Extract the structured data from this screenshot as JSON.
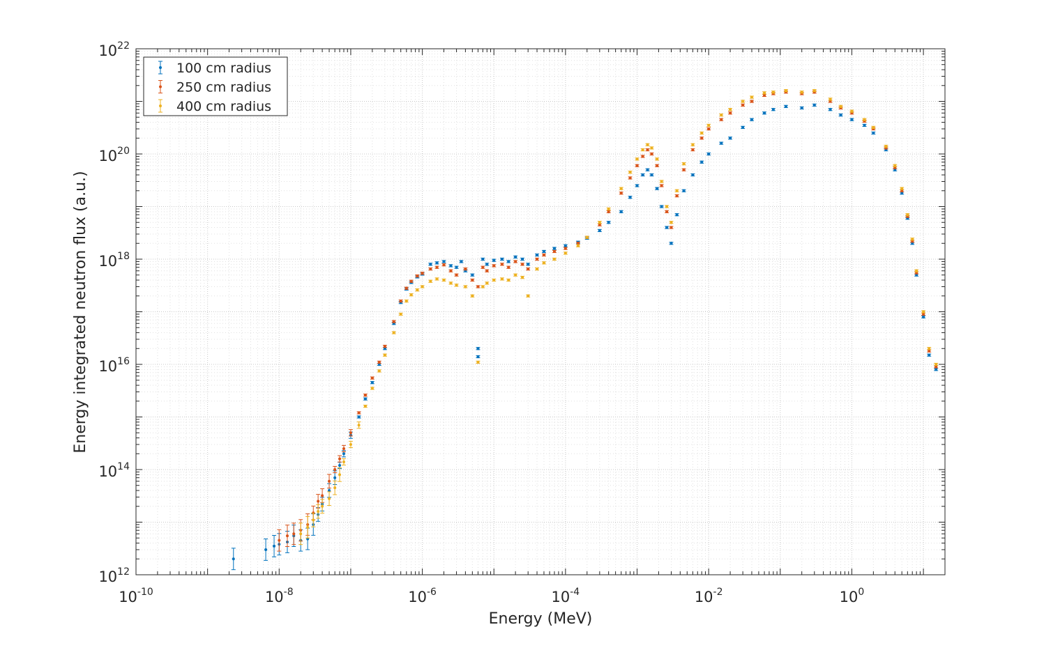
{
  "chart_data": {
    "type": "scatter",
    "title": "",
    "xlabel": "Energy (MeV)",
    "ylabel": "Energy integrated neutron flux (a.u.)",
    "xscale": "log",
    "yscale": "log",
    "xlim": [
      1e-10,
      20
    ],
    "ylim": [
      1000000000000.0,
      1e+22
    ],
    "grid": "major and minor, dotted",
    "legend_position": "top-left",
    "error_bars": true,
    "x_ticks": [
      {
        "base": "10",
        "exp": "-10",
        "value": 1e-10
      },
      {
        "base": "10",
        "exp": "-8",
        "value": 1e-08
      },
      {
        "base": "10",
        "exp": "-6",
        "value": 1e-06
      },
      {
        "base": "10",
        "exp": "-4",
        "value": 0.0001
      },
      {
        "base": "10",
        "exp": "-2",
        "value": 0.01
      },
      {
        "base": "10",
        "exp": "0",
        "value": 1
      }
    ],
    "y_ticks": [
      {
        "base": "10",
        "exp": "12",
        "value": 1000000000000.0
      },
      {
        "base": "10",
        "exp": "14",
        "value": 100000000000000.0
      },
      {
        "base": "10",
        "exp": "16",
        "value": 1e+16
      },
      {
        "base": "10",
        "exp": "18",
        "value": 1e+18
      },
      {
        "base": "10",
        "exp": "20",
        "value": 1e+20
      },
      {
        "base": "10",
        "exp": "22",
        "value": 1e+22
      }
    ],
    "series": [
      {
        "name": "100 cm radius",
        "color": "#0072BD",
        "points": [
          [
            2.3e-09,
            2000000000000.0
          ],
          [
            6.5e-09,
            3000000000000.0
          ],
          [
            8.5e-09,
            3500000000000.0
          ],
          [
            1e-08,
            3800000000000.0
          ],
          [
            1.3e-08,
            4200000000000.0
          ],
          [
            1.6e-08,
            5500000000000.0
          ],
          [
            2e-08,
            4500000000000.0
          ],
          [
            2.5e-08,
            4800000000000.0
          ],
          [
            3e-08,
            9000000000000.0
          ],
          [
            3.5e-08,
            14000000000000.0
          ],
          [
            4e-08,
            22000000000000.0
          ],
          [
            5e-08,
            40000000000000.0
          ],
          [
            6e-08,
            70000000000000.0
          ],
          [
            7e-08,
            120000000000000.0
          ],
          [
            8e-08,
            200000000000000.0
          ],
          [
            1e-07,
            450000000000000.0
          ],
          [
            1.3e-07,
            1000000000000000.0
          ],
          [
            1.6e-07,
            2200000000000000.0
          ],
          [
            2e-07,
            4500000000000000.0
          ],
          [
            2.5e-07,
            1e+16
          ],
          [
            3e-07,
            2e+16
          ],
          [
            4e-07,
            6e+16
          ],
          [
            5e-07,
            1.5e+17
          ],
          [
            6e-07,
            2.7e+17
          ],
          [
            7e-07,
            3.6e+17
          ],
          [
            8.5e-07,
            4.6e+17
          ],
          [
            1e-06,
            5.2e+17
          ],
          [
            1.3e-06,
            8e+17
          ],
          [
            1.6e-06,
            8.5e+17
          ],
          [
            2e-06,
            9e+17
          ],
          [
            2.5e-06,
            7.5e+17
          ],
          [
            3e-06,
            7e+17
          ],
          [
            3.5e-06,
            9e+17
          ],
          [
            4e-06,
            6e+17
          ],
          [
            5e-06,
            5e+17
          ],
          [
            6e-06,
            2e+16
          ],
          [
            6e-06,
            1.4e+16
          ],
          [
            7e-06,
            1e+18
          ],
          [
            8e-06,
            8e+17
          ],
          [
            1e-05,
            9.5e+17
          ],
          [
            1.3e-05,
            1e+18
          ],
          [
            1.6e-05,
            9e+17
          ],
          [
            2e-05,
            1.1e+18
          ],
          [
            2.5e-05,
            1e+18
          ],
          [
            3e-05,
            8e+17
          ],
          [
            4e-05,
            1.2e+18
          ],
          [
            5e-05,
            1.4e+18
          ],
          [
            7e-05,
            1.6e+18
          ],
          [
            0.0001,
            1.8e+18
          ],
          [
            0.00015,
            2.1e+18
          ],
          [
            0.0002,
            2.5e+18
          ],
          [
            0.0003,
            3.5e+18
          ],
          [
            0.0004,
            5e+18
          ],
          [
            0.0006,
            8e+18
          ],
          [
            0.0008,
            1.5e+19
          ],
          [
            0.001,
            2.5e+19
          ],
          [
            0.0012,
            4e+19
          ],
          [
            0.0014,
            5e+19
          ],
          [
            0.0016,
            4e+19
          ],
          [
            0.0019,
            2.2e+19
          ],
          [
            0.0022,
            1e+19
          ],
          [
            0.0026,
            4e+18
          ],
          [
            0.003,
            2e+18
          ],
          [
            0.0036,
            7e+18
          ],
          [
            0.0045,
            2e+19
          ],
          [
            0.006,
            4e+19
          ],
          [
            0.008,
            7e+19
          ],
          [
            0.01,
            1e+20
          ],
          [
            0.015,
            1.6e+20
          ],
          [
            0.02,
            2e+20
          ],
          [
            0.03,
            3.2e+20
          ],
          [
            0.04,
            4.5e+20
          ],
          [
            0.06,
            6e+20
          ],
          [
            0.08,
            7e+20
          ],
          [
            0.12,
            8e+20
          ],
          [
            0.2,
            7.5e+20
          ],
          [
            0.3,
            8.5e+20
          ],
          [
            0.5,
            7e+20
          ],
          [
            0.7,
            5.5e+20
          ],
          [
            1.0,
            4.5e+20
          ],
          [
            1.5,
            3.5e+20
          ],
          [
            2.0,
            2.5e+20
          ],
          [
            3.0,
            1.2e+20
          ],
          [
            4.0,
            5e+19
          ],
          [
            5.0,
            1.8e+19
          ],
          [
            6.0,
            6e+18
          ],
          [
            7.0,
            2e+18
          ],
          [
            8.0,
            5e+17
          ],
          [
            10.0,
            8e+16
          ],
          [
            12.0,
            1.5e+16
          ],
          [
            15.0,
            8000000000000000.0
          ]
        ]
      },
      {
        "name": "250 cm radius",
        "color": "#D95319",
        "points": [
          [
            1e-08,
            4500000000000.0
          ],
          [
            1.3e-08,
            5500000000000.0
          ],
          [
            1.6e-08,
            6000000000000.0
          ],
          [
            2e-08,
            7000000000000.0
          ],
          [
            2.5e-08,
            9000000000000.0
          ],
          [
            3e-08,
            15000000000000.0
          ],
          [
            3.5e-08,
            25000000000000.0
          ],
          [
            4e-08,
            32000000000000.0
          ],
          [
            5e-08,
            60000000000000.0
          ],
          [
            6e-08,
            100000000000000.0
          ],
          [
            7e-08,
            160000000000000.0
          ],
          [
            8e-08,
            250000000000000.0
          ],
          [
            1e-07,
            500000000000000.0
          ],
          [
            1.3e-07,
            1200000000000000.0
          ],
          [
            1.6e-07,
            2600000000000000.0
          ],
          [
            2e-07,
            5500000000000000.0
          ],
          [
            2.5e-07,
            1.1e+16
          ],
          [
            3e-07,
            2.2e+16
          ],
          [
            4e-07,
            6.5e+16
          ],
          [
            5e-07,
            1.6e+17
          ],
          [
            6e-07,
            2.8e+17
          ],
          [
            7e-07,
            3.8e+17
          ],
          [
            8.5e-07,
            4.8e+17
          ],
          [
            1e-06,
            5.4e+17
          ],
          [
            1.3e-06,
            6.5e+17
          ],
          [
            1.6e-06,
            7e+17
          ],
          [
            2e-06,
            7.8e+17
          ],
          [
            2.5e-06,
            6e+17
          ],
          [
            3e-06,
            5e+17
          ],
          [
            4e-06,
            6.5e+17
          ],
          [
            5e-06,
            4e+17
          ],
          [
            6e-06,
            3e+17
          ],
          [
            7e-06,
            7e+17
          ],
          [
            8e-06,
            6e+17
          ],
          [
            1e-05,
            7.5e+17
          ],
          [
            1.3e-05,
            8e+17
          ],
          [
            1.6e-05,
            7e+17
          ],
          [
            2e-05,
            9e+17
          ],
          [
            2.5e-05,
            8e+17
          ],
          [
            3e-05,
            6.5e+17
          ],
          [
            4e-05,
            1e+18
          ],
          [
            5e-05,
            1.2e+18
          ],
          [
            7e-05,
            1.4e+18
          ],
          [
            0.0001,
            1.6e+18
          ],
          [
            0.00015,
            2e+18
          ],
          [
            0.0002,
            2.6e+18
          ],
          [
            0.0003,
            4.5e+18
          ],
          [
            0.0004,
            8e+18
          ],
          [
            0.0006,
            1.8e+19
          ],
          [
            0.0008,
            3.5e+19
          ],
          [
            0.001,
            6e+19
          ],
          [
            0.0012,
            9e+19
          ],
          [
            0.0014,
            1.2e+20
          ],
          [
            0.0016,
            1e+20
          ],
          [
            0.0019,
            6e+19
          ],
          [
            0.0022,
            2.5e+19
          ],
          [
            0.0026,
            8e+18
          ],
          [
            0.003,
            4e+18
          ],
          [
            0.0036,
            1.6e+19
          ],
          [
            0.0045,
            5e+19
          ],
          [
            0.006,
            1.2e+20
          ],
          [
            0.008,
            2e+20
          ],
          [
            0.01,
            3e+20
          ],
          [
            0.015,
            4.5e+20
          ],
          [
            0.02,
            6e+20
          ],
          [
            0.03,
            8.5e+20
          ],
          [
            0.04,
            1e+21
          ],
          [
            0.06,
            1.3e+21
          ],
          [
            0.08,
            1.4e+21
          ],
          [
            0.12,
            1.5e+21
          ],
          [
            0.2,
            1.4e+21
          ],
          [
            0.3,
            1.5e+21
          ],
          [
            0.5,
            1e+21
          ],
          [
            0.7,
            7.5e+20
          ],
          [
            1.0,
            6e+20
          ],
          [
            1.5,
            4.2e+20
          ],
          [
            2.0,
            3e+20
          ],
          [
            3.0,
            1.3e+20
          ],
          [
            4.0,
            5.5e+19
          ],
          [
            5.0,
            2e+19
          ],
          [
            6.0,
            6.5e+18
          ],
          [
            7.0,
            2.2e+18
          ],
          [
            8.0,
            5.5e+17
          ],
          [
            10.0,
            9e+16
          ],
          [
            12.0,
            1.8e+16
          ],
          [
            15.0,
            9000000000000000.0
          ]
        ]
      },
      {
        "name": "400 cm radius",
        "color": "#EDB120",
        "points": [
          [
            2e-08,
            6000000000000.0
          ],
          [
            2.5e-08,
            8000000000000.0
          ],
          [
            3e-08,
            11000000000000.0
          ],
          [
            3.5e-08,
            16000000000000.0
          ],
          [
            4e-08,
            20000000000000.0
          ],
          [
            5e-08,
            28000000000000.0
          ],
          [
            6e-08,
            45000000000000.0
          ],
          [
            7e-08,
            80000000000000.0
          ],
          [
            8e-08,
            140000000000000.0
          ],
          [
            1e-07,
            300000000000000.0
          ],
          [
            1.3e-07,
            700000000000000.0
          ],
          [
            1.6e-07,
            1600000000000000.0
          ],
          [
            2e-07,
            3500000000000000.0
          ],
          [
            2.5e-07,
            7500000000000000.0
          ],
          [
            3e-07,
            1.5e+16
          ],
          [
            4e-07,
            4e+16
          ],
          [
            5e-07,
            9e+16
          ],
          [
            6e-07,
            1.6e+17
          ],
          [
            7e-07,
            2.1e+17
          ],
          [
            8.5e-07,
            2.6e+17
          ],
          [
            1e-06,
            3e+17
          ],
          [
            1.3e-06,
            3.8e+17
          ],
          [
            1.6e-06,
            4.2e+17
          ],
          [
            2e-06,
            4e+17
          ],
          [
            2.5e-06,
            3.5e+17
          ],
          [
            3e-06,
            3.2e+17
          ],
          [
            4e-06,
            3e+17
          ],
          [
            5e-06,
            2e+17
          ],
          [
            6e-06,
            1.1e+16
          ],
          [
            7e-06,
            3e+17
          ],
          [
            8e-06,
            3.5e+17
          ],
          [
            1e-05,
            4e+17
          ],
          [
            1.3e-05,
            4.2e+17
          ],
          [
            1.6e-05,
            4e+17
          ],
          [
            2e-05,
            5e+17
          ],
          [
            2.5e-05,
            4.5e+17
          ],
          [
            3e-05,
            2e+17
          ],
          [
            4e-05,
            6.5e+17
          ],
          [
            5e-05,
            8.5e+17
          ],
          [
            7e-05,
            1e+18
          ],
          [
            0.0001,
            1.3e+18
          ],
          [
            0.00015,
            1.8e+18
          ],
          [
            0.0002,
            2.6e+18
          ],
          [
            0.0003,
            5e+18
          ],
          [
            0.0004,
            9e+18
          ],
          [
            0.0006,
            2.2e+19
          ],
          [
            0.0008,
            4.5e+19
          ],
          [
            0.001,
            8e+19
          ],
          [
            0.0012,
            1.2e+20
          ],
          [
            0.0014,
            1.5e+20
          ],
          [
            0.0016,
            1.3e+20
          ],
          [
            0.0019,
            8e+19
          ],
          [
            0.0022,
            3e+19
          ],
          [
            0.0026,
            1e+19
          ],
          [
            0.003,
            5e+18
          ],
          [
            0.0036,
            2e+19
          ],
          [
            0.0045,
            6.5e+19
          ],
          [
            0.006,
            1.5e+20
          ],
          [
            0.008,
            2.5e+20
          ],
          [
            0.01,
            3.5e+20
          ],
          [
            0.015,
            5.5e+20
          ],
          [
            0.02,
            7e+20
          ],
          [
            0.03,
            1e+21
          ],
          [
            0.04,
            1.2e+21
          ],
          [
            0.06,
            1.45e+21
          ],
          [
            0.08,
            1.5e+21
          ],
          [
            0.12,
            1.6e+21
          ],
          [
            0.2,
            1.5e+21
          ],
          [
            0.3,
            1.6e+21
          ],
          [
            0.5,
            1.1e+21
          ],
          [
            0.7,
            8e+20
          ],
          [
            1.0,
            6.5e+20
          ],
          [
            1.5,
            4.5e+20
          ],
          [
            2.0,
            3.2e+20
          ],
          [
            3.0,
            1.4e+20
          ],
          [
            4.0,
            6e+19
          ],
          [
            5.0,
            2.2e+19
          ],
          [
            6.0,
            7e+18
          ],
          [
            7.0,
            2.4e+18
          ],
          [
            8.0,
            6e+17
          ],
          [
            10.0,
            1e+17
          ],
          [
            12.0,
            2e+16
          ],
          [
            15.0,
            1e+16
          ]
        ]
      }
    ]
  }
}
